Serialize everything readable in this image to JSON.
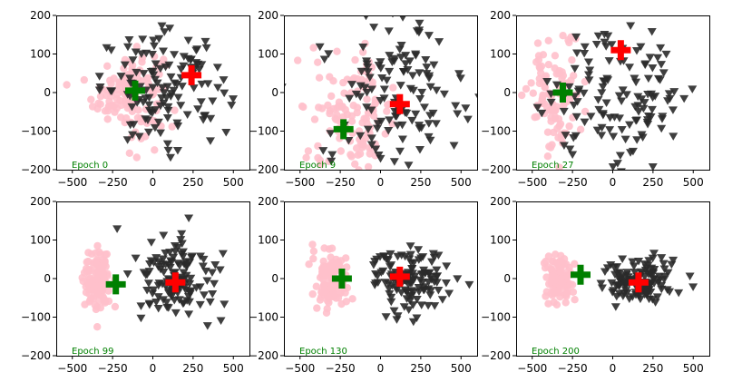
{
  "colors": {
    "class_a": "#ffc0cb",
    "class_b": "#2a2a2a",
    "centroid_a": "#008000",
    "centroid_b": "#ff0000",
    "epoch_label": "#008000"
  },
  "chart_data": [
    {
      "type": "scatter",
      "annotation": "Epoch 0",
      "xlim": [
        -600,
        600
      ],
      "ylim": [
        -200,
        200
      ],
      "xticks": [
        -500,
        -250,
        0,
        250,
        500
      ],
      "yticks": [
        -200,
        -100,
        0,
        100,
        200
      ],
      "grid": false,
      "markers": {
        "class_a": "circle",
        "class_b": "triangle-down",
        "centroids": "plus"
      },
      "class_a_cloud": {
        "cx": -150,
        "cy": 0,
        "sx": 110,
        "sy": 55,
        "n": 130
      },
      "class_b_cloud": {
        "cx": 80,
        "cy": 10,
        "sx": 200,
        "sy": 70,
        "n": 130
      },
      "centroids": [
        {
          "class": "class_a",
          "x": -110,
          "y": 5
        },
        {
          "class": "class_b",
          "x": 240,
          "y": 45
        }
      ]
    },
    {
      "type": "scatter",
      "annotation": "Epoch 9",
      "xlim": [
        -600,
        600
      ],
      "ylim": [
        -200,
        200
      ],
      "xticks": [
        -500,
        -250,
        0,
        250,
        500
      ],
      "yticks": [
        -200,
        -100,
        0,
        100,
        200
      ],
      "grid": false,
      "markers": {
        "class_a": "circle",
        "class_b": "triangle-down",
        "centroids": "plus"
      },
      "class_a_cloud": {
        "cx": -170,
        "cy": -60,
        "sx": 130,
        "sy": 80,
        "n": 130
      },
      "class_b_cloud": {
        "cx": 70,
        "cy": 0,
        "sx": 220,
        "sy": 100,
        "n": 130
      },
      "centroids": [
        {
          "class": "class_a",
          "x": -230,
          "y": -95
        },
        {
          "class": "class_b",
          "x": 120,
          "y": -30
        }
      ]
    },
    {
      "type": "scatter",
      "annotation": "Epoch 27",
      "xlim": [
        -600,
        600
      ],
      "ylim": [
        -200,
        200
      ],
      "xticks": [
        -500,
        -250,
        0,
        250,
        500
      ],
      "yticks": [
        -200,
        -100,
        0,
        100,
        200
      ],
      "grid": false,
      "markers": {
        "class_a": "circle",
        "class_b": "triangle-down",
        "centroids": "plus"
      },
      "class_a_cloud": {
        "cx": -350,
        "cy": -10,
        "sx": 80,
        "sy": 75,
        "n": 110
      },
      "class_b_cloud": {
        "cx": 50,
        "cy": -10,
        "sx": 230,
        "sy": 90,
        "n": 130
      },
      "centroids": [
        {
          "class": "class_a",
          "x": -310,
          "y": 0
        },
        {
          "class": "class_b",
          "x": 50,
          "y": 110
        }
      ]
    },
    {
      "type": "scatter",
      "annotation": "Epoch 99",
      "xlim": [
        -600,
        600
      ],
      "ylim": [
        -200,
        200
      ],
      "xticks": [
        -500,
        -250,
        0,
        250,
        500
      ],
      "yticks": [
        -200,
        -100,
        0,
        100,
        200
      ],
      "grid": false,
      "markers": {
        "class_a": "circle",
        "class_b": "triangle-down",
        "centroids": "plus"
      },
      "class_a_cloud": {
        "cx": -340,
        "cy": -10,
        "sx": 45,
        "sy": 45,
        "n": 110
      },
      "class_b_cloud": {
        "cx": 150,
        "cy": 10,
        "sx": 130,
        "sy": 55,
        "n": 130
      },
      "centroids": [
        {
          "class": "class_a",
          "x": -230,
          "y": -15
        },
        {
          "class": "class_b",
          "x": 140,
          "y": -10
        }
      ]
    },
    {
      "type": "scatter",
      "annotation": "Epoch 130",
      "xlim": [
        -600,
        600
      ],
      "ylim": [
        -200,
        200
      ],
      "xticks": [
        -500,
        -250,
        0,
        250,
        500
      ],
      "yticks": [
        -200,
        -100,
        0,
        100,
        200
      ],
      "grid": false,
      "markers": {
        "class_a": "circle",
        "class_b": "triangle-down",
        "centroids": "plus"
      },
      "class_a_cloud": {
        "cx": -310,
        "cy": -5,
        "sx": 50,
        "sy": 40,
        "n": 110
      },
      "class_b_cloud": {
        "cx": 180,
        "cy": 0,
        "sx": 110,
        "sy": 40,
        "n": 130
      },
      "centroids": [
        {
          "class": "class_a",
          "x": -240,
          "y": 0
        },
        {
          "class": "class_b",
          "x": 120,
          "y": 5
        }
      ]
    },
    {
      "type": "scatter",
      "annotation": "Epoch 200",
      "xlim": [
        -600,
        600
      ],
      "ylim": [
        -200,
        200
      ],
      "xticks": [
        -500,
        -250,
        0,
        250,
        500
      ],
      "yticks": [
        -200,
        -100,
        0,
        100,
        200
      ],
      "grid": false,
      "markers": {
        "class_a": "circle",
        "class_b": "triangle-down",
        "centroids": "plus"
      },
      "class_a_cloud": {
        "cx": -330,
        "cy": 0,
        "sx": 40,
        "sy": 35,
        "n": 110
      },
      "class_b_cloud": {
        "cx": 150,
        "cy": -5,
        "sx": 110,
        "sy": 30,
        "n": 130
      },
      "centroids": [
        {
          "class": "class_a",
          "x": -200,
          "y": 10
        },
        {
          "class": "class_b",
          "x": 160,
          "y": -10
        }
      ]
    }
  ]
}
